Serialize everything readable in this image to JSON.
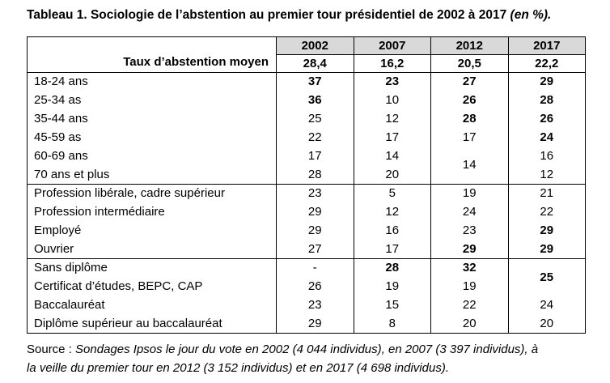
{
  "title": {
    "text": "Tableau 1. Sociologie de l’abstention au premier tour présidentiel de 2002 à 2017",
    "unit_note": "(en %)."
  },
  "colors": {
    "header_bg": "#d9d9d9",
    "border": "#000000",
    "text": "#000000"
  },
  "table": {
    "corner_label": "Taux d’abstention moyen",
    "years": [
      "2002",
      "2007",
      "2012",
      "2017"
    ],
    "average_values": [
      "28,4",
      "16,2",
      "20,5",
      "22,2"
    ],
    "groups": [
      {
        "name": "age",
        "rows": [
          {
            "label": "18-24 ans",
            "cells": [
              {
                "text": "37",
                "bold": true
              },
              {
                "text": "23",
                "bold": true
              },
              {
                "text": "27",
                "bold": true
              },
              {
                "text": "29",
                "bold": true
              }
            ]
          },
          {
            "label": "25-34 as",
            "cells": [
              {
                "text": "36",
                "bold": true
              },
              {
                "text": "10"
              },
              {
                "text": "26",
                "bold": true
              },
              {
                "text": "28",
                "bold": true
              }
            ]
          },
          {
            "label": "35-44 ans",
            "cells": [
              {
                "text": "25"
              },
              {
                "text": "12"
              },
              {
                "text": "28",
                "bold": true
              },
              {
                "text": "26",
                "bold": true
              }
            ]
          },
          {
            "label": "45-59 as",
            "cells": [
              {
                "text": "22"
              },
              {
                "text": "17"
              },
              {
                "text": "17"
              },
              {
                "text": "24",
                "bold": true
              }
            ]
          },
          {
            "label": "60-69 ans",
            "cells": [
              {
                "text": "17"
              },
              {
                "text": "14"
              },
              {
                "text": "14",
                "rowspan": 2
              },
              {
                "text": "16"
              }
            ]
          },
          {
            "label": "70 ans et plus",
            "cells": [
              {
                "text": "28"
              },
              {
                "text": "20"
              },
              {
                "skip": true
              },
              {
                "text": "12"
              }
            ]
          }
        ]
      },
      {
        "name": "profession",
        "rows": [
          {
            "label": "Profession libérale, cadre supérieur",
            "cells": [
              {
                "text": "23"
              },
              {
                "text": "5"
              },
              {
                "text": "19"
              },
              {
                "text": "21"
              }
            ]
          },
          {
            "label": "Profession intermédiaire",
            "cells": [
              {
                "text": "29"
              },
              {
                "text": "12"
              },
              {
                "text": "24"
              },
              {
                "text": "22"
              }
            ]
          },
          {
            "label": "Employé",
            "cells": [
              {
                "text": "29"
              },
              {
                "text": "16"
              },
              {
                "text": "23"
              },
              {
                "text": "29",
                "bold": true
              }
            ]
          },
          {
            "label": "Ouvrier",
            "cells": [
              {
                "text": "27"
              },
              {
                "text": "17"
              },
              {
                "text": "29",
                "bold": true
              },
              {
                "text": "29",
                "bold": true
              }
            ]
          }
        ]
      },
      {
        "name": "diplome",
        "rows": [
          {
            "label": "Sans diplôme",
            "cells": [
              {
                "text": "-"
              },
              {
                "text": "28",
                "bold": true
              },
              {
                "text": "32",
                "bold": true
              },
              {
                "text": "25",
                "bold": true,
                "rowspan": 2
              }
            ]
          },
          {
            "label": "Certificat d’études, BEPC, CAP",
            "cells": [
              {
                "text": "26"
              },
              {
                "text": "19"
              },
              {
                "text": "19"
              },
              {
                "skip": true
              }
            ]
          },
          {
            "label": "Baccalauréat",
            "cells": [
              {
                "text": "23"
              },
              {
                "text": "15"
              },
              {
                "text": "22"
              },
              {
                "text": "24"
              }
            ]
          },
          {
            "label": "Diplôme supérieur au baccalauréat",
            "cells": [
              {
                "text": "29"
              },
              {
                "text": "8"
              },
              {
                "text": "20"
              },
              {
                "text": "20"
              }
            ]
          }
        ]
      }
    ]
  },
  "source": {
    "label": "Source :",
    "line1": "Sondages Ipsos le jour du vote en 2002 (4 044 individus), en 2007 (3 397 individus), à",
    "line2": "la veille du premier tour en 2012 (3 152 individus) et en 2017 (4 698 individus)."
  }
}
